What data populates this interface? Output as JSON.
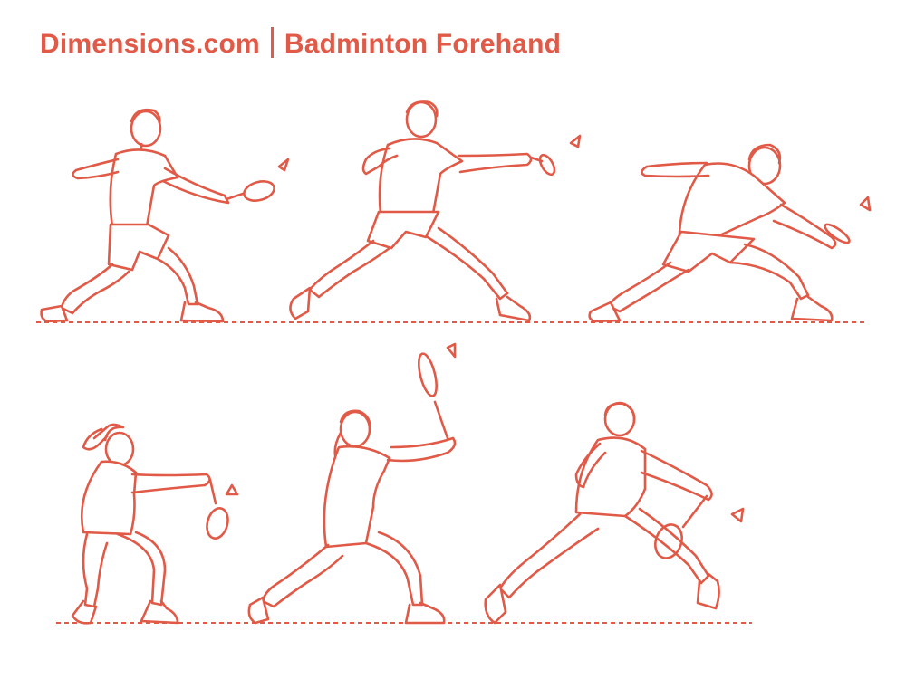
{
  "header": {
    "brand": "Dimensions.com",
    "subject": "Badminton Forehand"
  },
  "colors": {
    "ink": "#e05a47"
  },
  "figures": [
    {
      "name": "male-forehand-lunge",
      "icon": "player-figure"
    },
    {
      "name": "male-forehand-reach",
      "icon": "player-figure"
    },
    {
      "name": "male-forehand-low-lunge",
      "icon": "player-figure"
    },
    {
      "name": "female-forehand-crouch",
      "icon": "player-figure"
    },
    {
      "name": "female-forehand-overhead",
      "icon": "player-figure"
    },
    {
      "name": "female-forehand-stride",
      "icon": "player-figure"
    }
  ]
}
